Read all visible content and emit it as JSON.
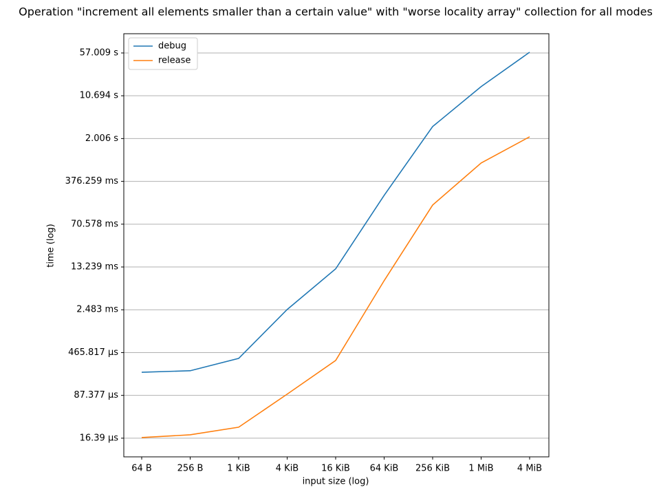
{
  "chart_data": {
    "type": "line",
    "title": "Operation \"increment all elements smaller than a certain value\" with \"worse locality array\" collection for all modes",
    "xlabel": "input size (log)",
    "ylabel": "time (log)",
    "categories": [
      "64 B",
      "256 B",
      "1 KiB",
      "4 KiB",
      "16 KiB",
      "64 KiB",
      "256 KiB",
      "1 MiB",
      "4 MiB"
    ],
    "series": [
      {
        "name": "debug",
        "color": "#1f77b4",
        "values": [
          0.000216,
          0.000229,
          0.000371,
          0.00251,
          0.0123,
          0.218,
          3.21,
          15.3,
          58.7
        ]
      },
      {
        "name": "release",
        "color": "#ff7f0e",
        "values": [
          1.68e-05,
          1.87e-05,
          2.52e-05,
          9.17e-05,
          0.000342,
          0.00776,
          0.149,
          0.772,
          2.15
        ]
      }
    ],
    "ylog": true,
    "ylim": [
      7.9e-06,
      121
    ],
    "yticks": [
      {
        "value": 1.639e-05,
        "label": "16.39 µs"
      },
      {
        "value": 8.7377e-05,
        "label": "87.377 µs"
      },
      {
        "value": 0.000465817,
        "label": "465.817 µs"
      },
      {
        "value": 0.002483,
        "label": "2.483 ms"
      },
      {
        "value": 0.013239,
        "label": "13.239 ms"
      },
      {
        "value": 0.070578,
        "label": "70.578 ms"
      },
      {
        "value": 0.376259,
        "label": "376.259 ms"
      },
      {
        "value": 2.006,
        "label": "2.006 s"
      },
      {
        "value": 10.694,
        "label": "10.694 s"
      },
      {
        "value": 57.009,
        "label": "57.009 s"
      }
    ],
    "grid": "y",
    "legend": "upper left"
  }
}
